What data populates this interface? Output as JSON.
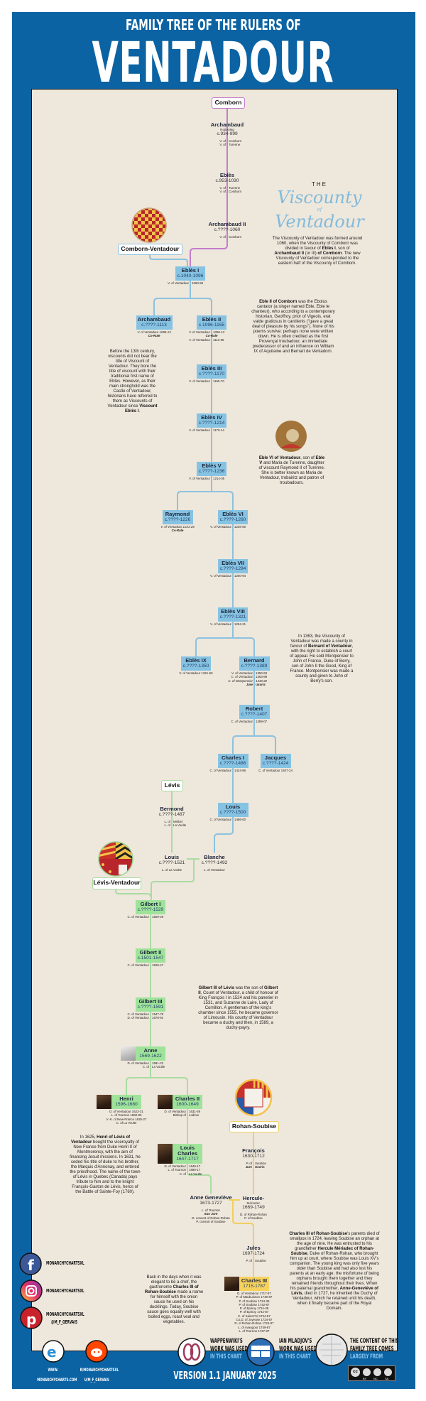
{
  "header": {
    "subtitle": "FAMILY TREE OF THE RULERS OF",
    "title": "VENTADOUR"
  },
  "colors": {
    "frame": "#0b63a3",
    "panel": "#eee7dc",
    "comborn": "#c47ccc",
    "ventadour": "#86c3e3",
    "levis": "#9fe39b",
    "rohan_soubise": "#f7d35e"
  },
  "houses": {
    "comborn": "Comborn",
    "comborn_ventadour": "Comborn-Ventadour",
    "levis": "Lévis",
    "levis_ventadour": "Lévis-Ventadour",
    "rohan_soubise": "Rohan-Soubise"
  },
  "feature_title": {
    "the": "THE",
    "viscounty": "Viscounty",
    "of": "of",
    "ventadour": "Ventadour"
  },
  "nodes": [
    {
      "name": "Archambaud",
      "sub": "Rottenleg",
      "dates": "c.934-999",
      "titles": [
        {
          "l": "V. of",
          "r": "Comborn"
        },
        {
          "l": "V. of",
          "r": "Turenne"
        }
      ]
    },
    {
      "name": "Eblès",
      "dates": "c.953-1030",
      "titles": [
        {
          "l": "V. of",
          "r": "Turenne"
        },
        {
          "l": "V. of",
          "r": "Comborn"
        }
      ]
    },
    {
      "name": "Archambaud II",
      "dates": "c.????-1060",
      "titles": [
        {
          "l": "V. of",
          "r": "Comborn"
        }
      ]
    },
    {
      "name": "Eblès I",
      "dates": "c.1040-1096",
      "titles": [
        {
          "l": "V. of Ventadour",
          "r": "1060-96"
        }
      ]
    },
    {
      "name": "Archambaud",
      "dates": "c.????-1113",
      "titles": [
        {
          "t": "V. of Ventadour 1096-13",
          "it": true
        },
        {
          "t": "Co-Rule",
          "em": true
        }
      ]
    },
    {
      "name": "Eblès II",
      "dates": "c.1096-1155",
      "titles": [
        {
          "l": "V. of Ventadour",
          "r": "1096-13",
          "it": true
        },
        {
          "t": "Co-Rule",
          "em": true
        },
        {
          "l": "V. of Ventadour",
          "r": "1113-55"
        }
      ]
    },
    {
      "name": "Eblès III",
      "dates": "c.????-1170",
      "titles": [
        {
          "l": "V. of Ventadour",
          "r": "1155-70"
        }
      ]
    },
    {
      "name": "Eblès IV",
      "dates": "c.????-1214",
      "titles": [
        {
          "l": "V. of Ventadour",
          "r": "1170-14"
        }
      ]
    },
    {
      "name": "Eblès V",
      "dates": "c.????-1236",
      "titles": [
        {
          "l": "V. of Ventadour",
          "r": "1214-36"
        }
      ]
    },
    {
      "name": "Raymond",
      "dates": "c.????-1226",
      "titles": [
        {
          "t": "V. of Ventadour 1221-26",
          "it": true
        },
        {
          "t": "Co-Rule",
          "em": true
        }
      ]
    },
    {
      "name": "Eblès VI",
      "dates": "c.????-1260",
      "titles": [
        {
          "l": "V. of Ventadour",
          "r": "1236-60"
        }
      ]
    },
    {
      "name": "Eblès VII",
      "dates": "c.????-1294",
      "titles": [
        {
          "l": "V. of Ventadour",
          "r": "1260-94"
        }
      ]
    },
    {
      "name": "Eblès VIII",
      "dates": "c.????-1321",
      "titles": [
        {
          "l": "V. of Ventadour",
          "r": "1294-21"
        }
      ]
    },
    {
      "name": "Eblès IX",
      "dates": "c.????-1350",
      "titles": [
        {
          "t": "V. of Ventadour 1321-50"
        }
      ]
    },
    {
      "name": "Bernard",
      "dates": "c.????-1389",
      "titles": [
        {
          "l": "V. of Ventadour",
          "r": "1350-63"
        },
        {
          "l": "C. of Ventadour",
          "r": "1363-89"
        },
        {
          "l": "C. of Montpensier",
          "r": "1346-82",
          "it": true
        },
        {
          "l": "Jure",
          "r": "Uxoris",
          "em": true
        }
      ]
    },
    {
      "name": "Robert",
      "dates": "c.????-1407",
      "titles": [
        {
          "l": "C. of Ventadour",
          "r": "1389-07"
        }
      ]
    },
    {
      "name": "Charles I",
      "dates": "c.????-1486",
      "titles": [
        {
          "l": "C. of Ventadour",
          "r": "1424-86"
        }
      ]
    },
    {
      "name": "Jacques",
      "dates": "c.????-1424",
      "titles": [
        {
          "t": "C. of Ventadour 1407-24"
        }
      ]
    },
    {
      "name": "Louis",
      "dates": "c.????-1500",
      "titles": [
        {
          "l": "C. of Ventadour",
          "r": "1486-00"
        }
      ]
    },
    {
      "name": "Bermond",
      "dates": "c.????-1487",
      "titles": [
        {
          "l": "L. of",
          "r": "Miribel"
        },
        {
          "l": "L. of",
          "r": "La Voulte"
        }
      ]
    },
    {
      "name": "Louis",
      "dates": "c.????-1521",
      "titles": [
        {
          "t": "L. of La Voulte"
        }
      ]
    },
    {
      "name": "Blanche",
      "dates": "c.????-1492",
      "titles": [
        {
          "t": "L. of Ventadour"
        }
      ]
    },
    {
      "name": "Gilbert I",
      "dates": "c.????-1529",
      "titles": [
        {
          "l": "C. of Ventadour",
          "r": "1500-29"
        }
      ]
    },
    {
      "name": "Gilbert II",
      "dates": "c.1501-1547",
      "titles": [
        {
          "l": "C. of Ventadour",
          "r": "1529-47"
        }
      ]
    },
    {
      "name": "Gilbert III",
      "dates": "c.????-1591",
      "titles": [
        {
          "l": "C. of Ventadour",
          "r": "1547-78"
        },
        {
          "l": "D. of Ventadour",
          "r": "1578-91"
        }
      ]
    },
    {
      "name": "Anne",
      "dates": "1569-1622",
      "titles": [
        {
          "l": "D. of Ventadour",
          "r": "1591-22"
        },
        {
          "l": "C. of",
          "r": "La Voulte"
        }
      ]
    },
    {
      "name": "Henri",
      "dates": "1596-1680",
      "titles": [
        {
          "t": "D. of Ventadour 1622-31"
        },
        {
          "t": "L. of Tournon 1660-80"
        },
        {
          "t": "V.-K. of New-France 1625-27"
        },
        {
          "t": "C. of La Voulte"
        }
      ]
    },
    {
      "name": "Charles II",
      "dates": "1600-1649",
      "titles": [
        {
          "l": "D. of Ventadour",
          "r": "1631-49"
        },
        {
          "l": "Bishop of",
          "r": "Lodève"
        }
      ]
    },
    {
      "name": "Louis Charles",
      "dates": "1647-1717",
      "titles": [
        {
          "l": "D. of Ventadour",
          "r": "1649-17"
        },
        {
          "l": "L. of Tournon",
          "r": "1680-17"
        },
        {
          "l": "C. of",
          "r": "La Voulte"
        }
      ]
    },
    {
      "name": "Anne Geneviève",
      "dates": "1673-1727",
      "titles": [
        {
          "t": "L. of Tournon",
          "it": true
        },
        {
          "t": "Suo Jure",
          "em": true
        },
        {
          "t": "D. consort of Rohan-Rohan"
        },
        {
          "t": "P. consort of Soubise"
        }
      ]
    },
    {
      "name": "François",
      "dates": "1630-1712",
      "titles": [
        {
          "l": "P. of",
          "r": "Soubise",
          "it": true
        },
        {
          "l": "Jure",
          "r": "Uxoris",
          "em": true
        }
      ]
    },
    {
      "name": "Hercule-",
      "sub": "Mériadec",
      "dates": "1669-1749",
      "titles": [
        {
          "t": "D. of Rohan-Rohan"
        },
        {
          "t": "P. of Soubise"
        }
      ]
    },
    {
      "name": "Jules",
      "dates": "1697-1724",
      "titles": [
        {
          "l": "P. of",
          "r": "Soubise"
        }
      ]
    },
    {
      "name": "Charles III",
      "dates": "1715-1787",
      "titles": [
        {
          "t": "D. of Ventadour 1717-87"
        },
        {
          "t": "P. of Maubuisson 1749-87"
        },
        {
          "t": "P. of Soubise 1724-39"
        },
        {
          "t": "P. of Soubise 1742-87"
        },
        {
          "t": "P. of Epinoy 1724-39"
        },
        {
          "t": "P. of Epinoy 1742-87"
        },
        {
          "t": "C. of Saint-Pol 1724-87"
        },
        {
          "t": "Co.D. of Joyeuse 1724-67"
        },
        {
          "t": "D. of Rohan-Rohan 1724-87"
        },
        {
          "t": "L. of Avaugour 1749-87"
        },
        {
          "t": "L. of Tournon 1727-87"
        }
      ]
    }
  ],
  "notes": [
    [
      {
        "t": "The Viscounty of Ventadour was formed around 1060, when the Viscounty of Comborn was divided in favour of "
      },
      {
        "t": "Eblès I",
        "b": true
      },
      {
        "t": ", son of "
      },
      {
        "t": "Archambaud II",
        "b": true
      },
      {
        "t": " (or III) "
      },
      {
        "t": "of Comborn",
        "b": true
      },
      {
        "t": ". The new Viscounty of Ventadour corresponded to the eastern half of the Viscounty of Comborn."
      }
    ],
    [
      {
        "t": "Eble II of Comborn",
        "b": true
      },
      {
        "t": " was the Ebolus cantator (a singer named Eble, Eble le chanteur), who according to a contemporary historian, Geoffroy, prior of Vigeois, erat valde gratiosus in cantilenis (\"gave a great deal of pleasure by his songs\"). None of his poems survive: perhaps none were written down. He is often credited as the first Provençal troubadour, an immediate predecessor of and an influence on William IX of Aquitaine and Bernart de Ventadorn."
      }
    ],
    [
      {
        "t": "Before the 13th century, viscounts did not bear the title of Viscount of Ventadour. They bore the title of viscount with their traditional first name of Ebles. However, as their main stronghold was the Castle of Ventadour, historians have referred to them as Viscounts of Ventadour since "
      },
      {
        "t": "Viscount Eblès I",
        "b": true
      },
      {
        "t": "."
      }
    ],
    [
      {
        "t": "Eble VI of Ventadour",
        "b": true
      },
      {
        "t": ", son of "
      },
      {
        "t": "Eble V",
        "b": true
      },
      {
        "t": " and Maria de Turenne, daughter of viscount Raymond II of Turenne. She is better known as Maria de Ventadour, trobairitz and patron of troubadours."
      }
    ],
    [
      {
        "t": "In 1363, the Viscounty of Ventadour was made a county in favour of "
      },
      {
        "t": "Bernard of Ventadour",
        "b": true
      },
      {
        "t": ", with the right to establish a court of appeal. He sold Montpensier to John of France, Duke of Berry, son of John II the Good, King of France. Montpensier was made a county and given to John of Berry's son."
      }
    ],
    [
      {
        "t": "Gilbert III of Lévis",
        "b": true
      },
      {
        "t": " was the son of "
      },
      {
        "t": "Gilbert II",
        "b": true
      },
      {
        "t": ", Count of Ventadour, a child of honour of King François I in 1524 and his panetier in 1531, and Suzanne de Laire, Lady of Cornillon. A gentleman of the king's chamber since 1555, he became governor of Limousin. His county of Ventadour became a duchy and then, in 1589, a duchy-payry."
      }
    ],
    [
      {
        "t": "In 1625, "
      },
      {
        "t": "Henri of Lévis of Ventadour",
        "b": true
      },
      {
        "t": " bought the viceroyalty of New France from Duke Henri II of Montmorency, with the aim of financing Jesuit missions. In 1631, he ceded his title of duke to his brother, the Marquis d'Annonay, and entered the priesthood. The name of the town of Lévis in Quebec (Canada) pays tribute to him and to the knight François-Gaston de Lévis, heros of the Battle of Sainte-Foy (1760)."
      }
    ],
    [
      {
        "t": "Charles III of Rohan-Soubise",
        "b": true
      },
      {
        "t": "'s parents died of smallpox in 1724, leaving Soubise an orphan at the age of nine. He was entrusted to his grandfather "
      },
      {
        "t": "Hercule Mériadec of Rohan-Soubise",
        "b": true
      },
      {
        "t": ", Duke of Rohan-Rohan, who brought him up at court, where Soubise was Louis XV's companion. The young king was only five years older than Soubise and had also lost his parents at an early age; the misfortune of being orphans brought them together and they remained friends throughout their lives. When his paternal grandmother, "
      },
      {
        "t": "Anne-Geneviève of Lévis",
        "b": true
      },
      {
        "t": ", died in 1727, he inherited the Duchy of Ventadour, which he retained until his death, when it finally became part of the Royal Domain."
      }
    ],
    [
      {
        "t": "Back in the days when it was elegant to be a chef, the gastronome "
      },
      {
        "t": "Charles III of Rohan-Soubise",
        "b": true
      },
      {
        "t": " made a name for himself with the onion sauce he used on his ducklings. Today, Soubise sauce goes equally well with boiled eggs, roast veal and vegetables."
      }
    ]
  ],
  "footer": {
    "social": {
      "facebook": "MONARCHYCHARTSXL",
      "instagram": "MONARCHYCHARTSXL",
      "pinterest_1": "MONARCHYCHARTSXL",
      "pinterest_2": "@M_F_GERVAIS"
    },
    "web": {
      "line1": "WWW.",
      "line2": "MONARCHYCHARTS.COM"
    },
    "reddit": {
      "line1": "R/MONARCHYCHARTSXL",
      "line2": "U/M_F_GERVAIS"
    },
    "version": "VERSION 1.1 JANUARY 2025",
    "credits": [
      {
        "l1": "WAPPENWIKI'S",
        "l2": "WORK WAS USED",
        "l3": "IN THIS CHART"
      },
      {
        "l1": "IAN MLADJOV'S",
        "l2": "WORK WAS USED",
        "l3": "IN THIS CHART"
      },
      {
        "l1": "THE CONTENT OF THIS",
        "l2": "FAMILY TREE COMES",
        "l3": "LARGELY FROM"
      }
    ],
    "license": {
      "by": "BY",
      "nc": "NC",
      "sa": "SA"
    }
  }
}
